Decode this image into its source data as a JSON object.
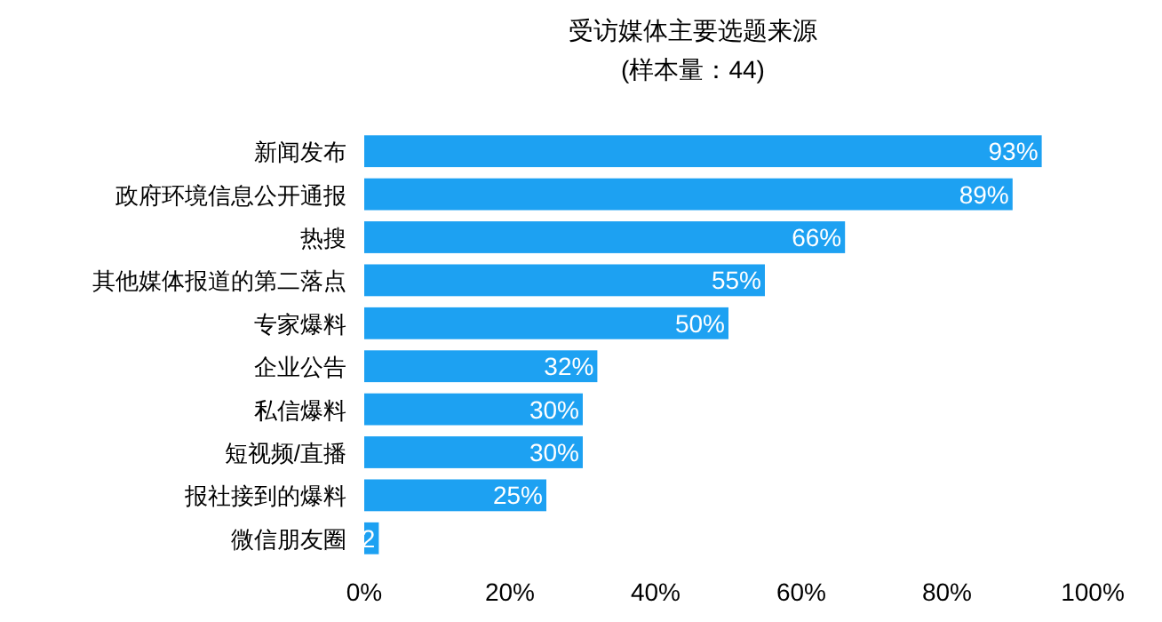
{
  "chart_data": {
    "type": "bar",
    "orientation": "horizontal",
    "title": "受访媒体主要选题来源",
    "subtitle": "(样本量：44)",
    "categories": [
      "新闻发布",
      "政府环境信息公开通报",
      "热搜",
      "其他媒体报道的第二落点",
      "专家爆料",
      "企业公告",
      "私信爆料",
      "短视频/直播",
      "报社接到的爆料",
      "微信朋友圈"
    ],
    "values": [
      93,
      89,
      66,
      55,
      50,
      32,
      30,
      30,
      25,
      2
    ],
    "value_labels": [
      "93%",
      "89%",
      "66%",
      "55%",
      "50%",
      "32%",
      "30%",
      "30%",
      "25%",
      "2"
    ],
    "color": "#1da1f2",
    "xlim": [
      0,
      100
    ],
    "xticks": [
      {
        "value": 0,
        "label": "0%"
      },
      {
        "value": 20,
        "label": "20%"
      },
      {
        "value": 40,
        "label": "40%"
      },
      {
        "value": 60,
        "label": "60%"
      },
      {
        "value": 80,
        "label": "80%"
      },
      {
        "value": 100,
        "label": "100%"
      }
    ],
    "grid": false
  }
}
